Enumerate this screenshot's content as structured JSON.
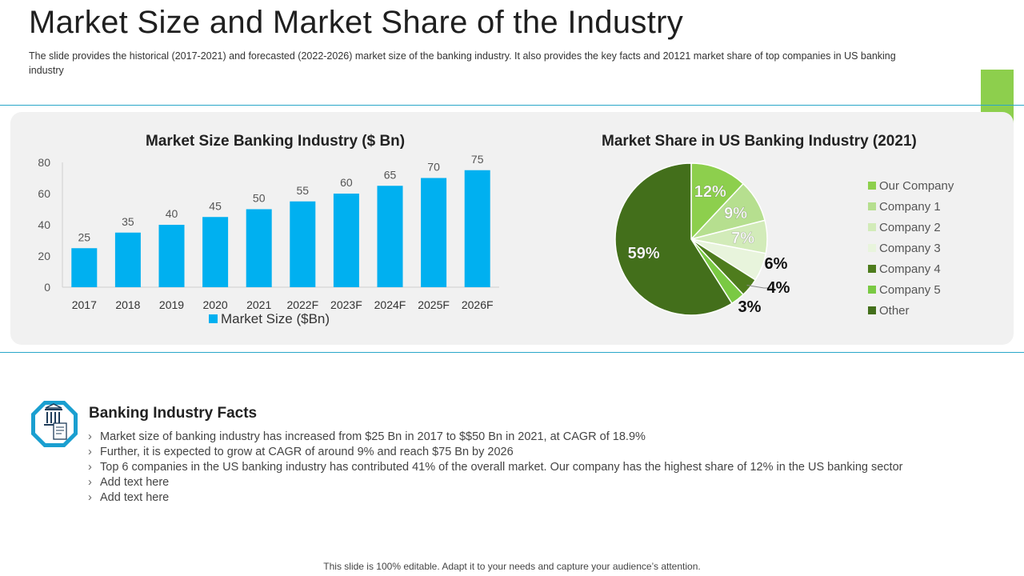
{
  "header": {
    "title": "Market Size and Market Share of the Industry",
    "subtitle": "The slide provides the historical (2017-2021) and forecasted (2022-2026) market size of the banking industry. It also provides the key facts and 20121 market share of top companies in US banking industry"
  },
  "colors": {
    "accent": "#8dcf4d",
    "bar": "#00b0f0",
    "line": "#2aa7c9"
  },
  "chart_data": [
    {
      "type": "bar",
      "title": "Market Size Banking Industry ($ Bn)",
      "categories": [
        "2017",
        "2018",
        "2019",
        "2020",
        "2021",
        "2022F",
        "2023F",
        "2024F",
        "2025F",
        "2026F"
      ],
      "series": [
        {
          "name": "Market Size ($Bn)",
          "values": [
            25,
            35,
            40,
            45,
            50,
            55,
            60,
            65,
            70,
            75
          ]
        }
      ],
      "ylim": [
        0,
        80
      ],
      "yticks": [
        "0",
        "20",
        "40",
        "60",
        "80"
      ],
      "grid": false,
      "legend": "bottom",
      "data_labels": true
    },
    {
      "type": "pie",
      "title": "Market Share in US Banking Industry (2021)",
      "slices": [
        {
          "name": "Our Company",
          "value": 12,
          "label": "12%",
          "color": "#8dcf4d"
        },
        {
          "name": "Company 1",
          "value": 9,
          "label": "9%",
          "color": "#b6df8f"
        },
        {
          "name": "Company 2",
          "value": 7,
          "label": "7%",
          "color": "#d2ebb9"
        },
        {
          "name": "Company 3",
          "value": 6,
          "label": "6%",
          "color": "#e8f4dc"
        },
        {
          "name": "Company 4",
          "value": 4,
          "label": "4%",
          "color": "#4e7c1d"
        },
        {
          "name": "Company 5",
          "value": 3,
          "label": "3%",
          "color": "#7ac943"
        },
        {
          "name": "Other",
          "value": 59,
          "label": "59%",
          "color": "#436f1b"
        }
      ],
      "legend": "right"
    }
  ],
  "facts": {
    "title": "Banking Industry Facts",
    "icon": "bank-icon",
    "items": [
      "Market size of banking industry has increased from $25 Bn in 2017 to $$50 Bn in 2021, at CAGR of 18.9%",
      "Further, it is expected to grow at CAGR of around 9% and reach $75 Bn by 2026",
      "Top 6 companies in the US banking industry has contributed 41% of the overall market. Our company has the highest share of 12% in the US banking sector",
      "Add text here",
      "Add text here"
    ],
    "bullet": "›"
  },
  "footer": "This slide is 100% editable. Adapt it to your needs and capture your audience’s attention."
}
